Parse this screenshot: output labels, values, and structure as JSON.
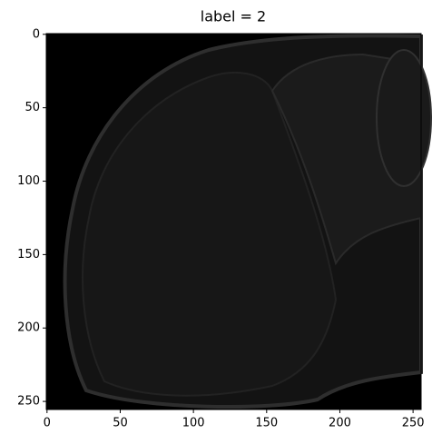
{
  "chart_data": {
    "type": "image",
    "title": "label = 2",
    "xlim": [
      -0.5,
      255.5
    ],
    "ylim": [
      255.5,
      -0.5
    ],
    "xticks": [
      0,
      50,
      100,
      150,
      200,
      250
    ],
    "yticks": [
      0,
      50,
      100,
      150,
      200,
      250
    ]
  }
}
